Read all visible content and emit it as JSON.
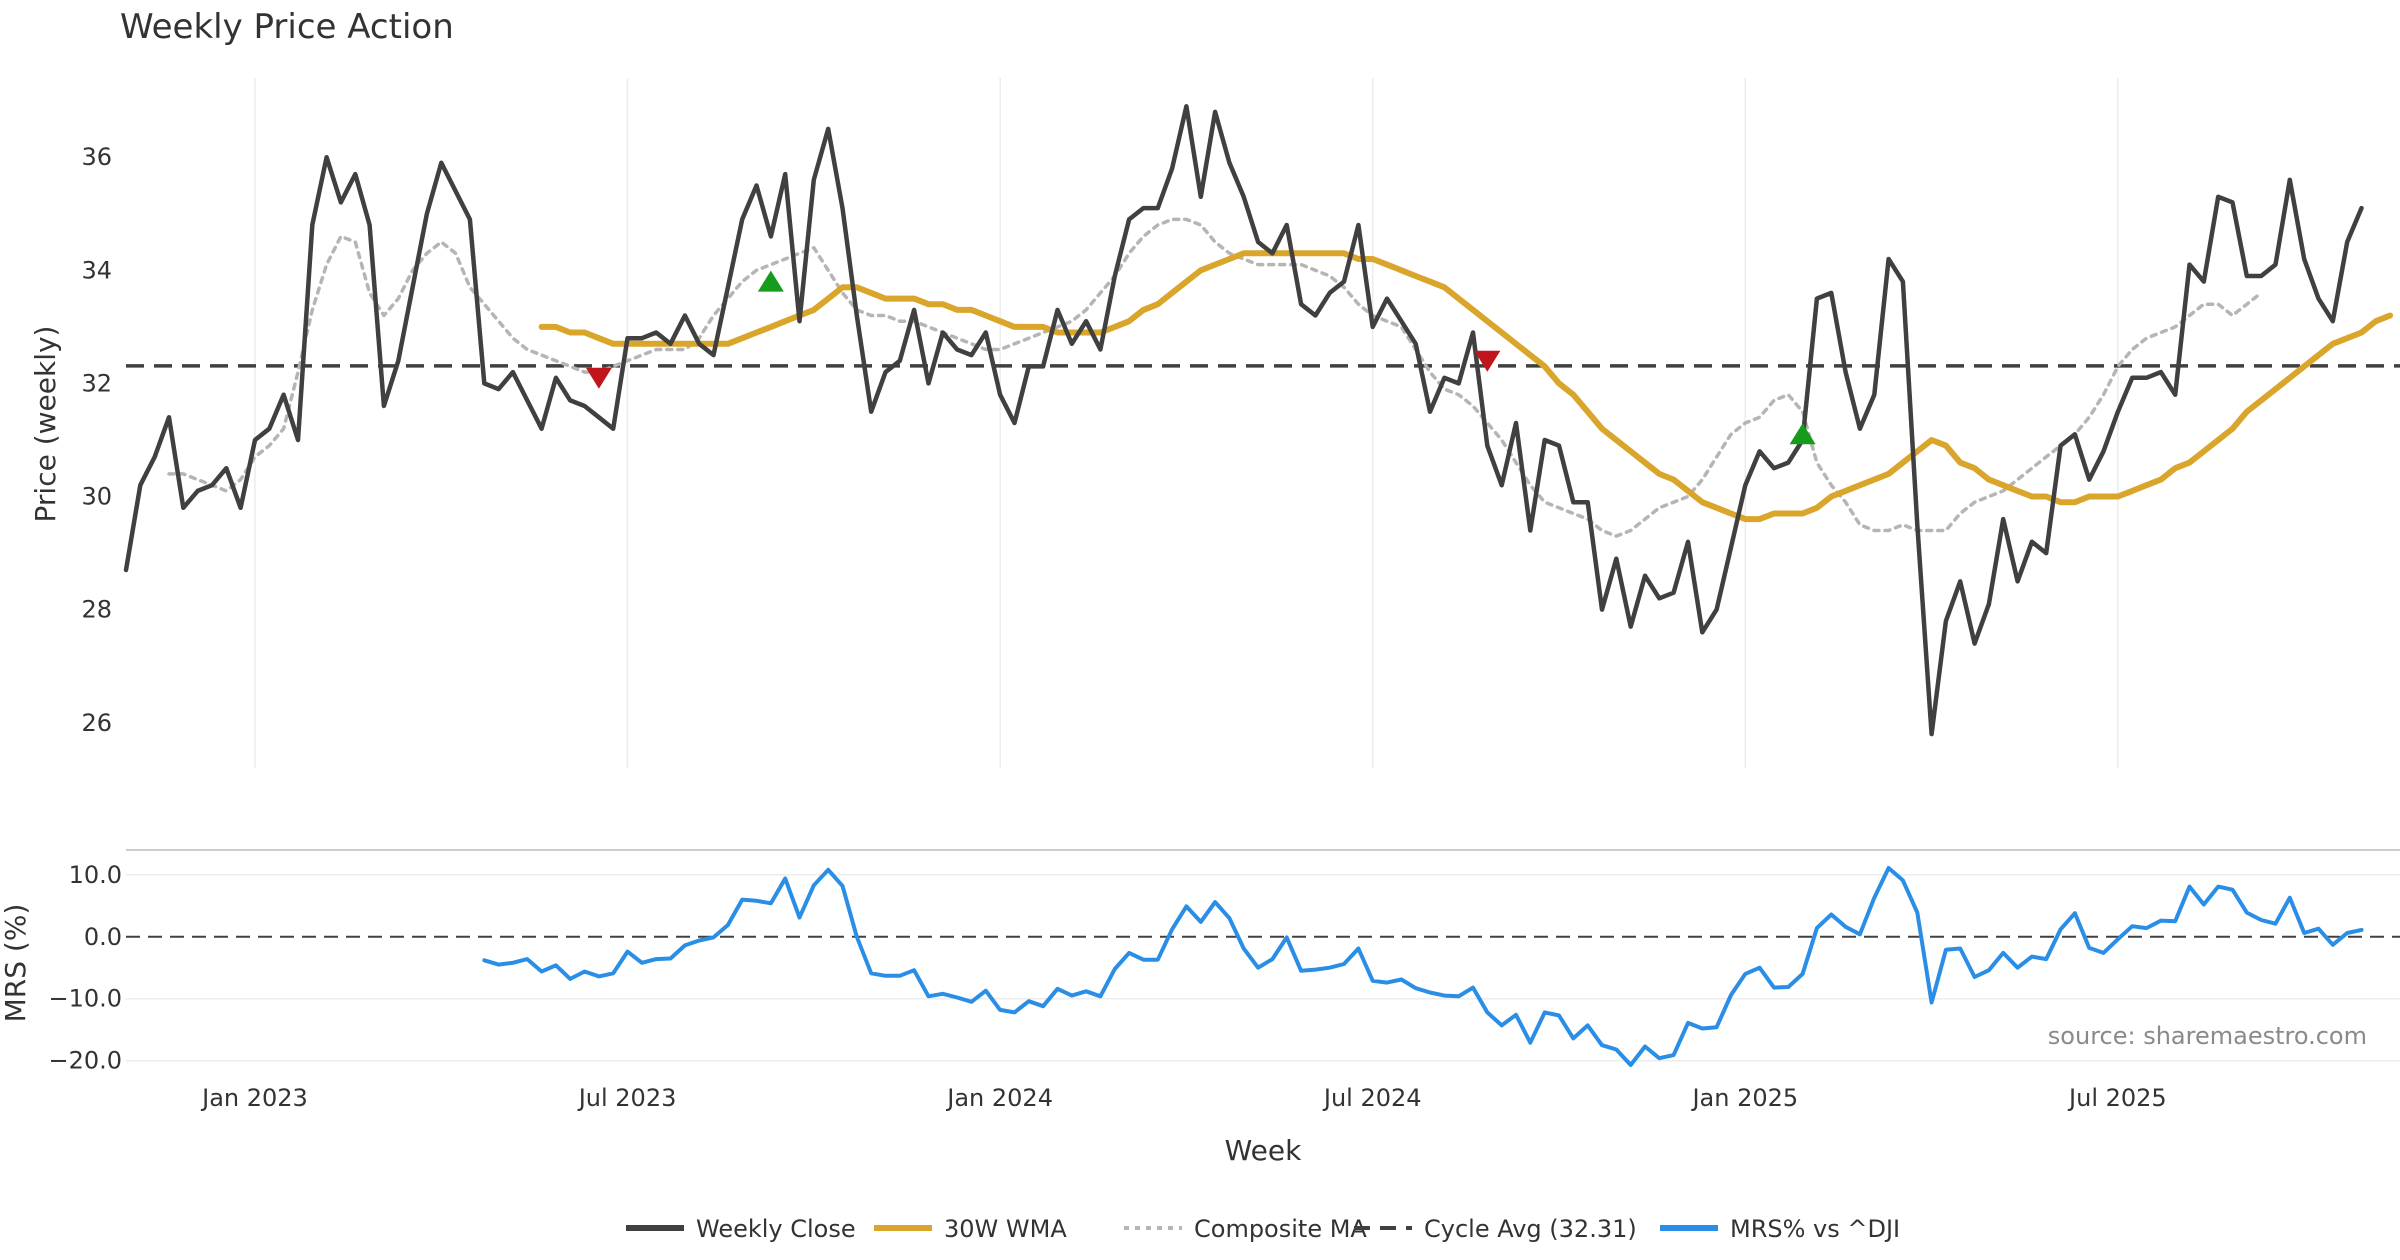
{
  "chart_data": {
    "type": "line",
    "title": "Weekly Price Action",
    "xlabel": "Week",
    "source": "source: sharemaestro.com",
    "x_tick_labels": [
      "Jan 2023",
      "Jul 2023",
      "Jan 2024",
      "Jul 2024",
      "Jan 2025",
      "Jul 2025"
    ],
    "x_tick_weeks": [
      9,
      35,
      61,
      87,
      113,
      139
    ],
    "price_panel": {
      "ylabel": "Price (weekly)",
      "ylim": [
        25.2,
        37.4
      ],
      "y_ticks": [
        26,
        28,
        30,
        32,
        34,
        36
      ],
      "cycle_avg": 32.31,
      "series": [
        {
          "name": "Weekly Close",
          "color": "#404040",
          "style": "solid",
          "start_week": 0,
          "values": [
            28.7,
            30.2,
            30.7,
            31.4,
            29.8,
            30.1,
            30.2,
            30.5,
            29.8,
            31.0,
            31.2,
            31.8,
            31.0,
            34.8,
            36.0,
            35.2,
            35.7,
            34.8,
            31.6,
            32.4,
            33.7,
            35.0,
            35.9,
            35.4,
            34.9,
            32.0,
            31.9,
            32.2,
            31.7,
            31.2,
            32.1,
            31.7,
            31.6,
            31.4,
            31.2,
            32.8,
            32.8,
            32.9,
            32.7,
            33.2,
            32.7,
            32.5,
            33.7,
            34.9,
            35.5,
            34.6,
            35.7,
            33.1,
            35.6,
            36.5,
            35.1,
            33.2,
            31.5,
            32.2,
            32.4,
            33.3,
            32.0,
            32.9,
            32.6,
            32.5,
            32.9,
            31.8,
            31.3,
            32.3,
            32.3,
            33.3,
            32.7,
            33.1,
            32.6,
            33.9,
            34.9,
            35.1,
            35.1,
            35.8,
            36.9,
            35.3,
            36.8,
            35.9,
            35.3,
            34.5,
            34.3,
            34.8,
            33.4,
            33.2,
            33.6,
            33.8,
            34.8,
            33.0,
            33.5,
            33.1,
            32.7,
            31.5,
            32.1,
            32.0,
            32.9,
            30.9,
            30.2,
            31.3,
            29.4,
            31.0,
            30.9,
            29.9,
            29.9,
            28.0,
            28.9,
            27.7,
            28.6,
            28.2,
            28.3,
            29.2,
            27.6,
            28.0,
            29.1,
            30.2,
            30.8,
            30.5,
            30.6,
            31.0,
            33.5,
            33.6,
            32.2,
            31.2,
            31.8,
            34.2,
            33.8,
            29.5,
            25.8,
            27.8,
            28.5,
            27.4,
            28.1,
            29.6,
            28.5,
            29.2,
            29.0,
            30.9,
            31.1,
            30.3,
            30.8,
            31.5,
            32.1,
            32.1,
            32.2,
            31.8,
            34.1,
            33.8,
            35.3,
            35.2,
            33.9,
            33.9,
            34.1,
            35.6,
            34.2,
            33.5,
            33.1,
            34.5,
            35.1
          ]
        },
        {
          "name": "30W WMA",
          "color": "#d9a52b",
          "style": "solid",
          "start_week": 29,
          "values": [
            33.0,
            33.0,
            32.9,
            32.9,
            32.8,
            32.7,
            32.7,
            32.7,
            32.7,
            32.7,
            32.7,
            32.7,
            32.7,
            32.7,
            32.8,
            32.9,
            33.0,
            33.1,
            33.2,
            33.3,
            33.5,
            33.7,
            33.7,
            33.6,
            33.5,
            33.5,
            33.5,
            33.4,
            33.4,
            33.3,
            33.3,
            33.2,
            33.1,
            33.0,
            33.0,
            33.0,
            32.9,
            32.9,
            32.9,
            32.9,
            33.0,
            33.1,
            33.3,
            33.4,
            33.6,
            33.8,
            34.0,
            34.1,
            34.2,
            34.3,
            34.3,
            34.3,
            34.3,
            34.3,
            34.3,
            34.3,
            34.3,
            34.2,
            34.2,
            34.1,
            34.0,
            33.9,
            33.8,
            33.7,
            33.5,
            33.3,
            33.1,
            32.9,
            32.7,
            32.5,
            32.3,
            32.0,
            31.8,
            31.5,
            31.2,
            31.0,
            30.8,
            30.6,
            30.4,
            30.3,
            30.1,
            29.9,
            29.8,
            29.7,
            29.6,
            29.6,
            29.7,
            29.7,
            29.7,
            29.8,
            30.0,
            30.1,
            30.2,
            30.3,
            30.4,
            30.6,
            30.8,
            31.0,
            30.9,
            30.6,
            30.5,
            30.3,
            30.2,
            30.1,
            30.0,
            30.0,
            29.9,
            29.9,
            30.0,
            30.0,
            30.0,
            30.1,
            30.2,
            30.3,
            30.5,
            30.6,
            30.8,
            31.0,
            31.2,
            31.5,
            31.7,
            31.9,
            32.1,
            32.3,
            32.5,
            32.7,
            32.8,
            32.9,
            33.1,
            33.2
          ]
        },
        {
          "name": "Composite MA",
          "color": "#b5b5b5",
          "style": "dotted",
          "start_week": 3,
          "values": [
            30.4,
            30.4,
            30.3,
            30.2,
            30.1,
            30.3,
            30.7,
            30.9,
            31.2,
            32.2,
            33.3,
            34.1,
            34.6,
            34.5,
            33.6,
            33.2,
            33.5,
            34.0,
            34.3,
            34.5,
            34.3,
            33.7,
            33.4,
            33.1,
            32.8,
            32.6,
            32.5,
            32.4,
            32.3,
            32.2,
            32.2,
            32.3,
            32.4,
            32.5,
            32.6,
            32.6,
            32.6,
            32.8,
            33.2,
            33.5,
            33.8,
            34.0,
            34.1,
            34.2,
            34.3,
            34.4,
            34.0,
            33.6,
            33.3,
            33.2,
            33.2,
            33.1,
            33.1,
            33.0,
            32.9,
            32.8,
            32.7,
            32.6,
            32.6,
            32.7,
            32.8,
            32.9,
            33.0,
            33.1,
            33.3,
            33.6,
            33.9,
            34.3,
            34.6,
            34.8,
            34.9,
            34.9,
            34.8,
            34.5,
            34.3,
            34.2,
            34.1,
            34.1,
            34.1,
            34.1,
            34.0,
            33.9,
            33.7,
            33.4,
            33.2,
            33.1,
            33.0,
            32.6,
            32.2,
            31.9,
            31.8,
            31.6,
            31.3,
            31.0,
            30.6,
            30.2,
            29.9,
            29.8,
            29.7,
            29.6,
            29.4,
            29.3,
            29.4,
            29.6,
            29.8,
            29.9,
            30.0,
            30.3,
            30.7,
            31.1,
            31.3,
            31.4,
            31.7,
            31.8,
            31.5,
            30.6,
            30.2,
            29.9,
            29.5,
            29.4,
            29.4,
            29.5,
            29.4,
            29.4,
            29.4,
            29.7,
            29.9,
            30.0,
            30.1,
            30.3,
            30.5,
            30.7,
            30.9,
            31.1,
            31.4,
            31.8,
            32.3,
            32.6,
            32.8,
            32.9,
            33.0,
            33.2,
            33.4,
            33.4,
            33.2,
            33.4,
            33.6
          ]
        }
      ],
      "signals": [
        {
          "type": "sell",
          "color": "#c0161b",
          "week": 33,
          "value": 32.1
        },
        {
          "type": "buy",
          "color": "#169b1c",
          "week": 45,
          "value": 33.8
        },
        {
          "type": "sell",
          "color": "#c0161b",
          "week": 95,
          "value": 32.4
        },
        {
          "type": "buy",
          "color": "#169b1c",
          "week": 117,
          "value": 31.1
        }
      ]
    },
    "mrs_panel": {
      "ylabel": "MRS (%)",
      "ylim": [
        -21.5,
        14.0
      ],
      "y_ticks": [
        -20.0,
        -10.0,
        0.0,
        10.0
      ],
      "y_tick_labels": [
        "−20.0",
        "−10.0",
        "0.0",
        "10.0"
      ],
      "series": [
        {
          "name": "MRS% vs ^DJI",
          "color": "#2a8ee6",
          "style": "solid",
          "start_week": 25,
          "values": [
            -3.8,
            -4.5,
            -4.2,
            -3.6,
            -5.6,
            -4.6,
            -6.8,
            -5.6,
            -6.4,
            -5.9,
            -2.4,
            -4.2,
            -3.6,
            -3.5,
            -1.4,
            -0.6,
            -0.1,
            1.9,
            6.0,
            5.8,
            5.4,
            9.4,
            3.1,
            8.3,
            10.8,
            8.2,
            0.0,
            -5.9,
            -6.3,
            -6.3,
            -5.4,
            -9.6,
            -9.2,
            -9.8,
            -10.5,
            -8.7,
            -11.8,
            -12.2,
            -10.4,
            -11.2,
            -8.4,
            -9.5,
            -8.8,
            -9.6,
            -5.2,
            -2.6,
            -3.7,
            -3.7,
            1.2,
            4.9,
            2.4,
            5.6,
            3.0,
            -1.9,
            -5.0,
            -3.6,
            -0.1,
            -5.5,
            -5.3,
            -5.0,
            -4.4,
            -1.9,
            -7.1,
            -7.4,
            -6.9,
            -8.3,
            -9.0,
            -9.5,
            -9.6,
            -8.2,
            -12.2,
            -14.3,
            -12.6,
            -17.1,
            -12.2,
            -12.7,
            -16.4,
            -14.3,
            -17.5,
            -18.2,
            -20.7,
            -17.7,
            -19.6,
            -19.1,
            -13.9,
            -14.8,
            -14.6,
            -9.4,
            -6.0,
            -5.0,
            -8.2,
            -8.1,
            -6.0,
            1.4,
            3.6,
            1.6,
            0.4,
            6.3,
            11.1,
            9.1,
            3.9,
            -10.6,
            -2.1,
            -1.9,
            -6.5,
            -5.4,
            -2.6,
            -5.0,
            -3.2,
            -3.6,
            1.2,
            3.8,
            -1.8,
            -2.6,
            -0.4,
            1.7,
            1.4,
            2.6,
            2.5,
            8.1,
            5.2,
            8.1,
            7.6,
            3.9,
            2.7,
            2.1,
            6.3,
            0.6,
            1.3,
            -1.3,
            0.6,
            1.1
          ]
        }
      ]
    },
    "legend": [
      {
        "label": "Weekly Close",
        "color": "#404040",
        "style": "solid"
      },
      {
        "label": "30W WMA",
        "color": "#d9a52b",
        "style": "solid"
      },
      {
        "label": "Composite MA",
        "color": "#b5b5b5",
        "style": "dotted"
      },
      {
        "label": "Cycle Avg (32.31)",
        "color": "#404040",
        "style": "dashed"
      },
      {
        "label": "MRS% vs ^DJI",
        "color": "#2a8ee6",
        "style": "solid"
      }
    ]
  }
}
